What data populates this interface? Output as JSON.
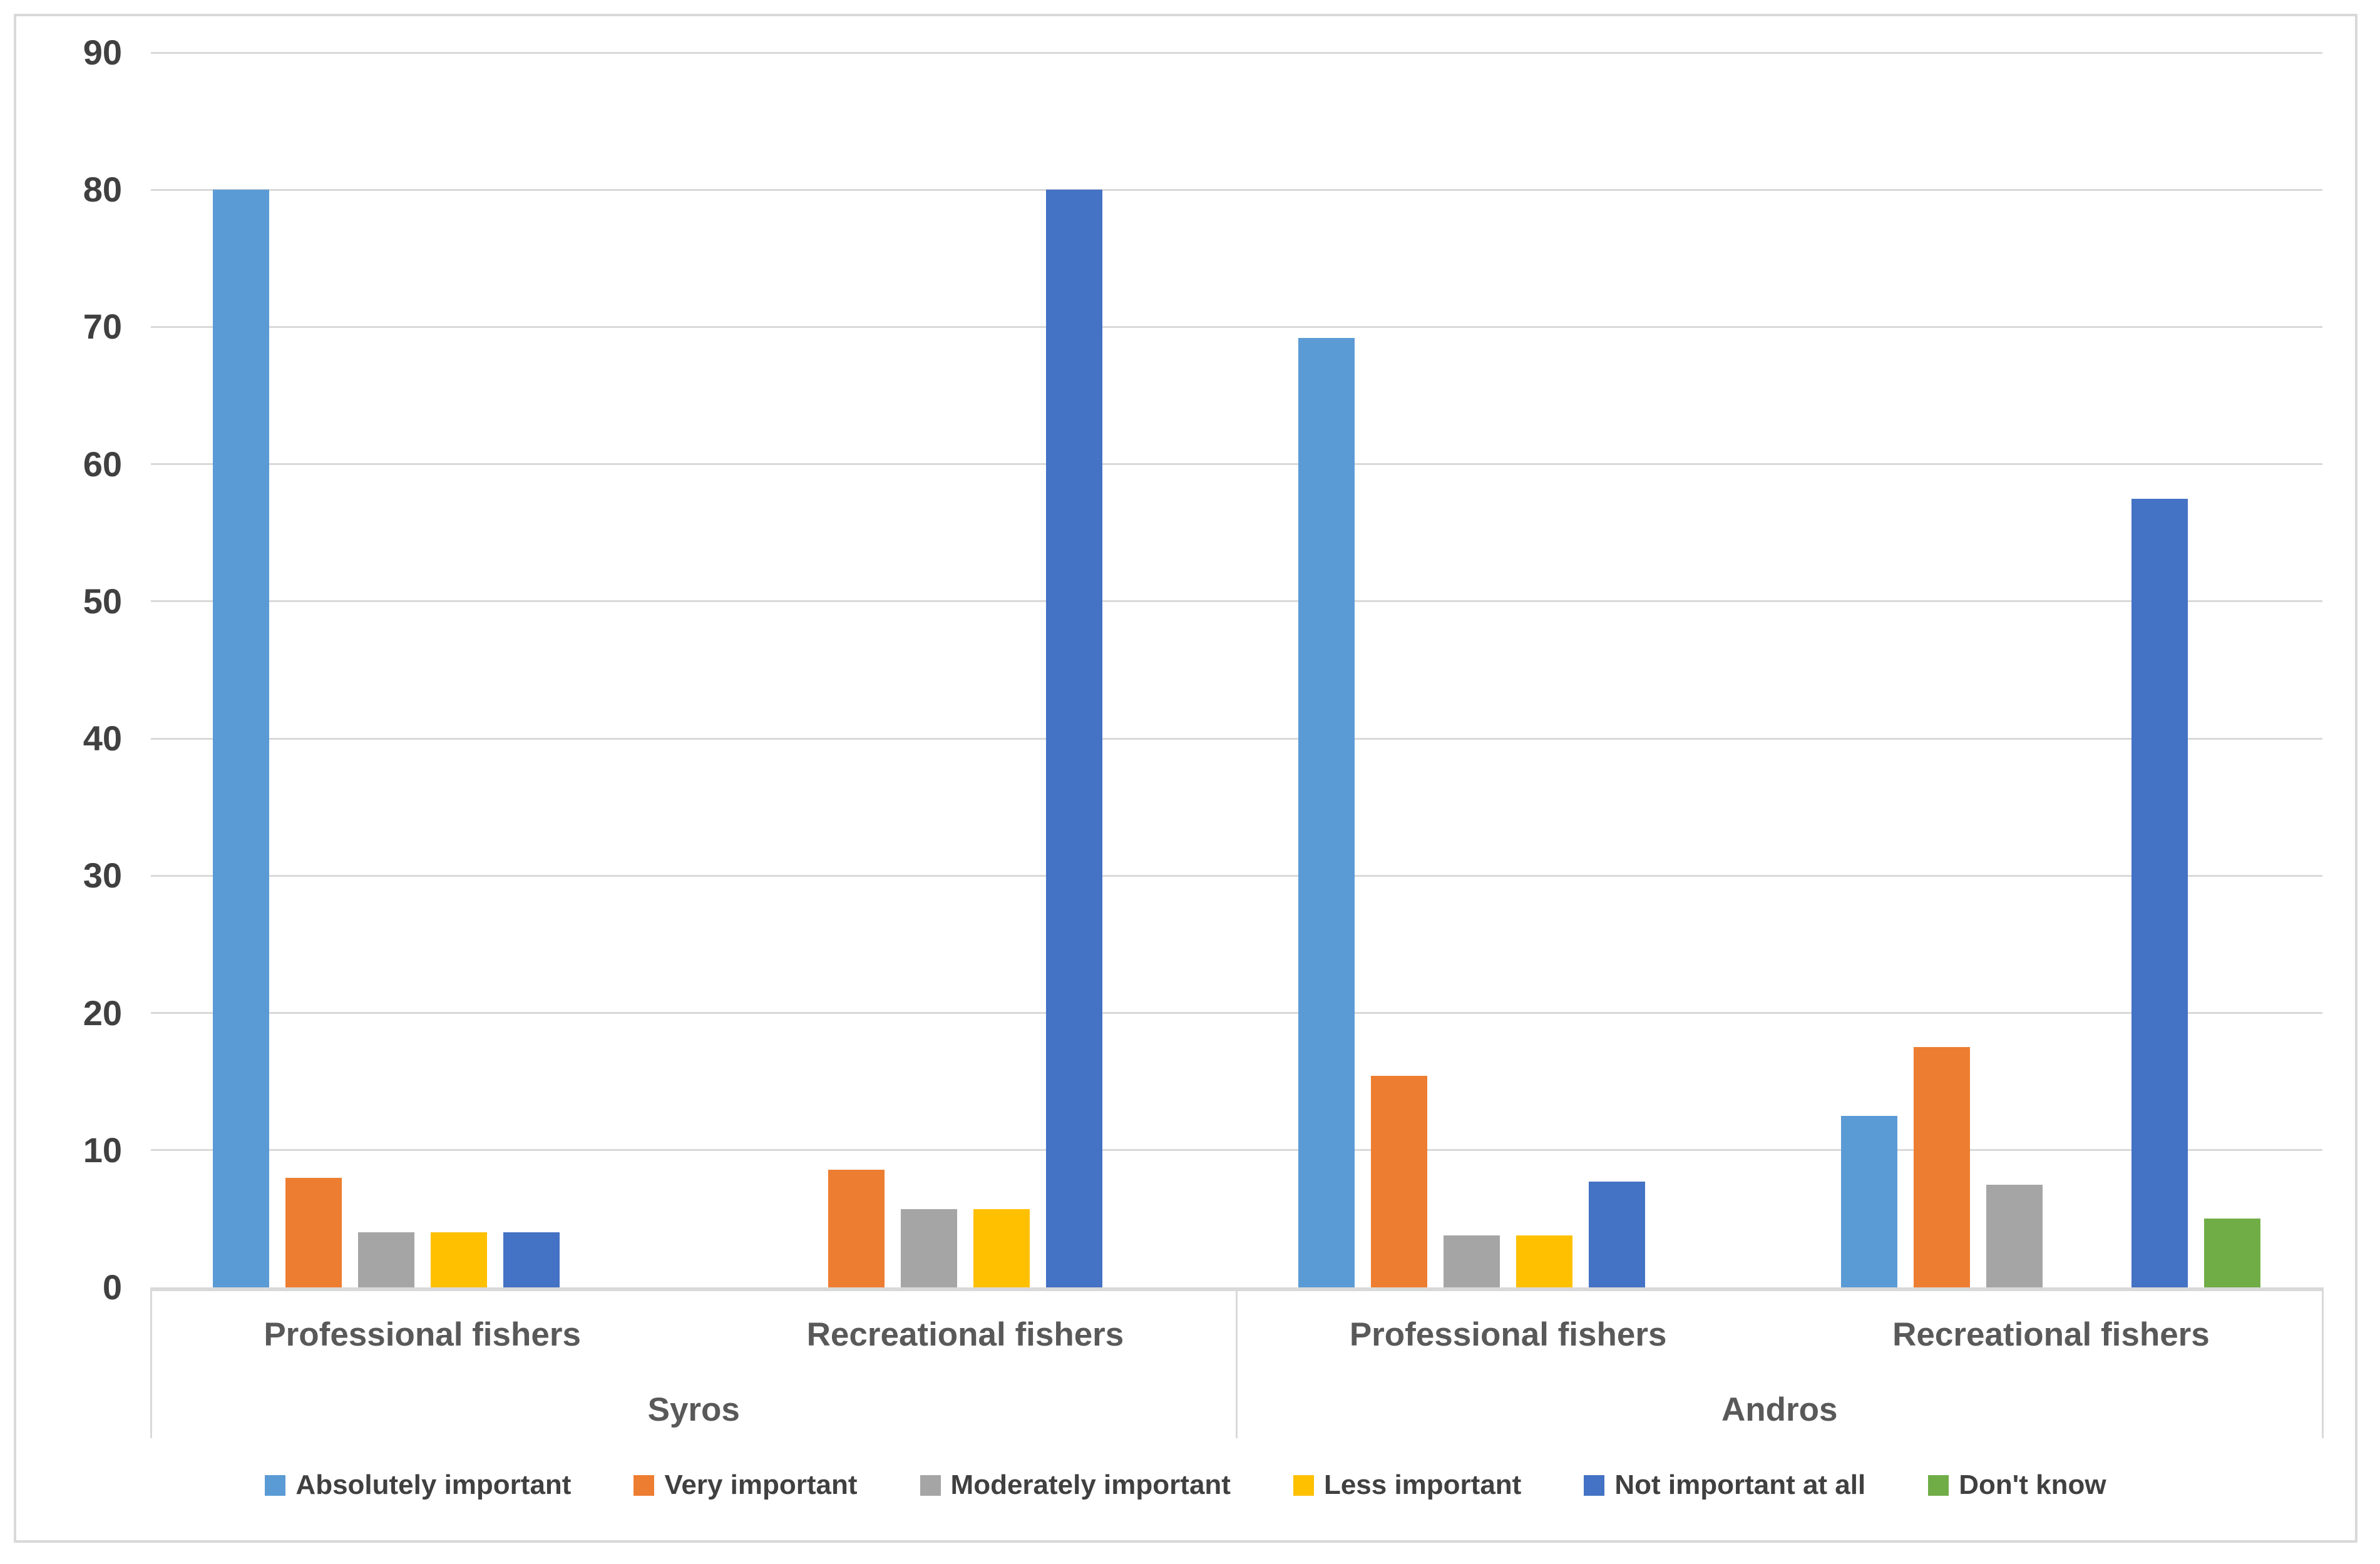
{
  "chart_data": {
    "type": "bar",
    "title": "",
    "grid": true,
    "legend_position": "bottom",
    "y_axis": {
      "min": 0,
      "max": 90,
      "tick_step": 10,
      "ticks": [
        0,
        10,
        20,
        30,
        40,
        50,
        60,
        70,
        80,
        90
      ]
    },
    "x_axis": {
      "groups": [
        {
          "label": "Syros",
          "categories": [
            "Professional fishers",
            "Recreational fishers"
          ]
        },
        {
          "label": "Andros",
          "categories": [
            "Professional fishers",
            "Recreational fishers"
          ]
        }
      ],
      "category_order": [
        "Syros / Professional fishers",
        "Syros / Recreational fishers",
        "Andros / Professional fishers",
        "Andros / Recreational fishers"
      ]
    },
    "series": [
      {
        "name": "Absolutely important",
        "color": "#5B9BD5",
        "values": [
          80,
          0,
          69.2,
          12.5
        ]
      },
      {
        "name": "Very important",
        "color": "#ED7D31",
        "values": [
          8,
          8.6,
          15.4,
          17.5
        ]
      },
      {
        "name": "Moderately important",
        "color": "#A5A5A5",
        "values": [
          4,
          5.7,
          3.8,
          7.5
        ]
      },
      {
        "name": "Less important",
        "color": "#FFC000",
        "values": [
          4,
          5.7,
          3.8,
          0
        ]
      },
      {
        "name": "Not important at all",
        "color": "#4472C4",
        "values": [
          4,
          80,
          7.7,
          57.5
        ]
      },
      {
        "name": "Don't know",
        "color": "#70AD47",
        "values": [
          0,
          0,
          0,
          5
        ]
      }
    ]
  },
  "colors": {
    "gridline": "#D9D9D9",
    "axis_line": "#D9D9D9",
    "chart_border": "#D9D9D9",
    "tick_text": "#404040",
    "category_text": "#595959",
    "legend_text": "#404040",
    "background": "#FFFFFF"
  }
}
